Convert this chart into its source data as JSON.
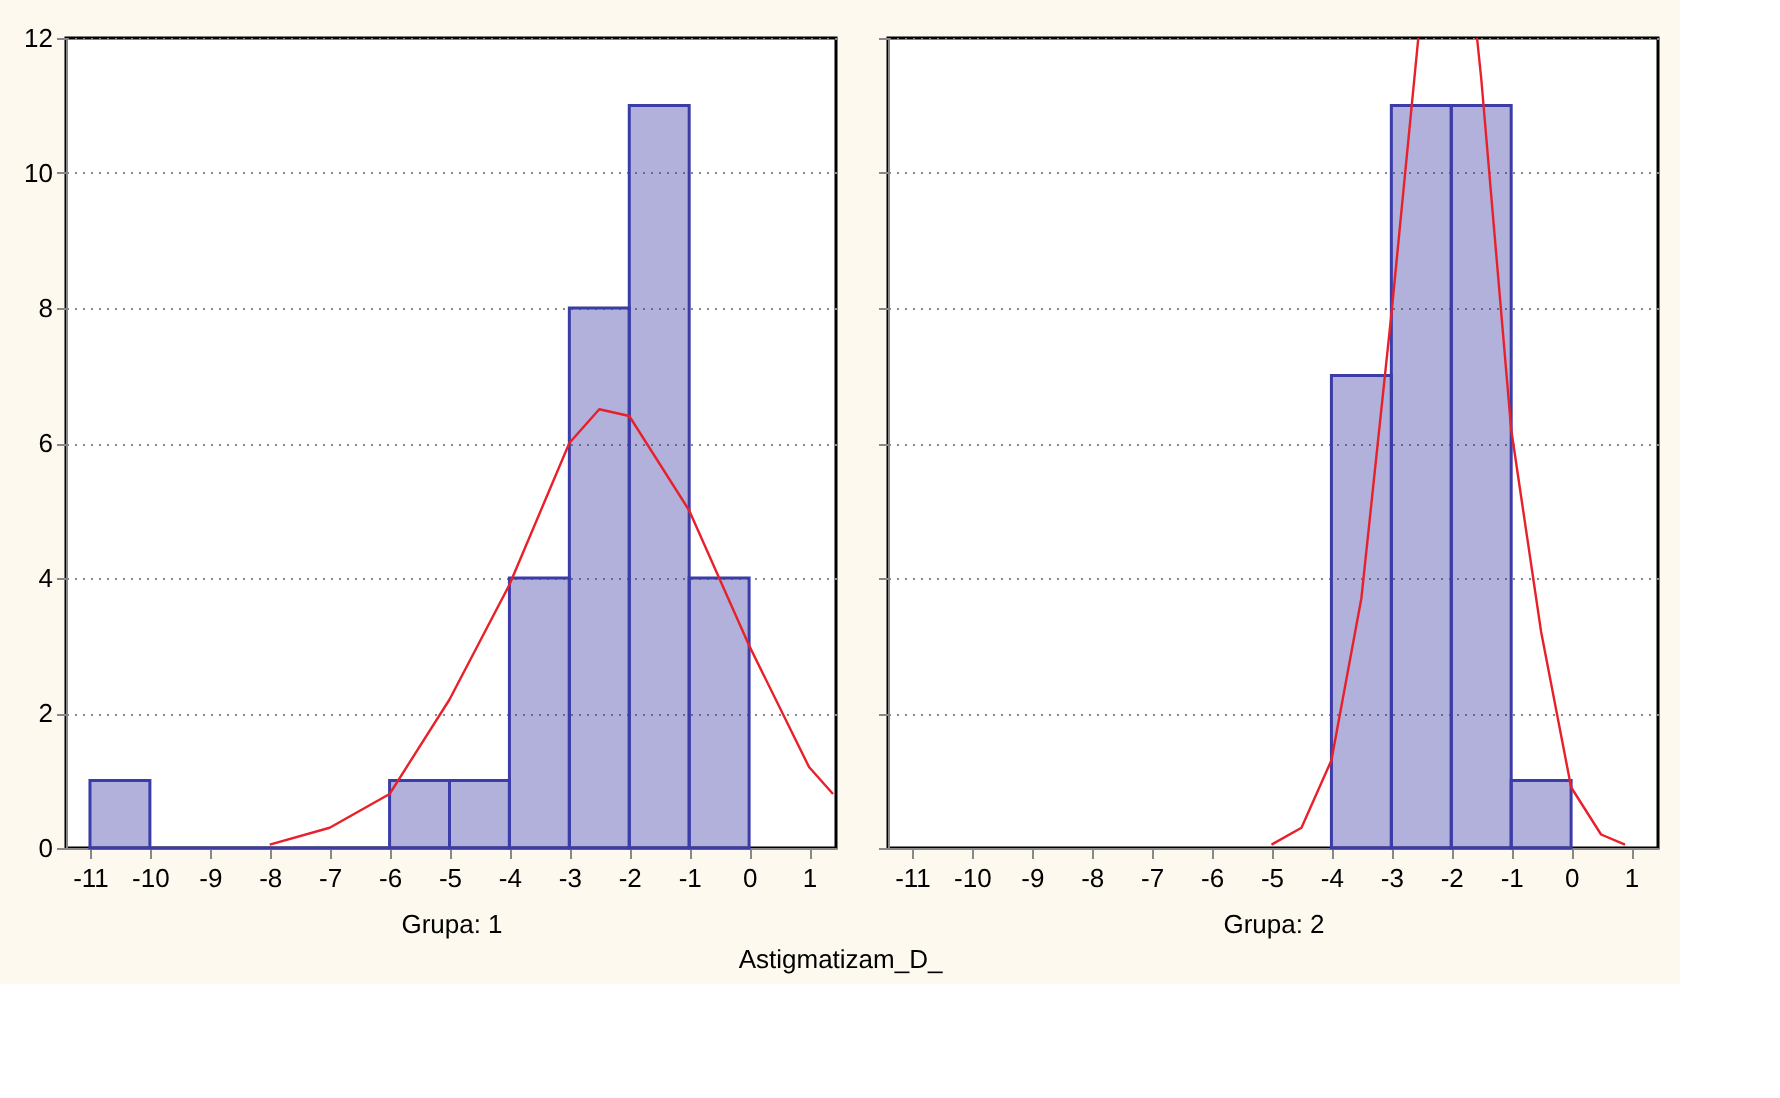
{
  "chart_data": [
    {
      "type": "histogram",
      "xlabel": "Grupa: 1",
      "annotations": [
        "Astigmatizam_D_"
      ],
      "xlim": [
        -11.4,
        1.45
      ],
      "ylim": [
        0,
        12
      ],
      "xticks": [
        -11,
        -10,
        -9,
        -8,
        -7,
        -6,
        -5,
        -4,
        -3,
        -2,
        -1,
        0,
        1
      ],
      "yticks": [
        0,
        2,
        4,
        6,
        8,
        10,
        12
      ],
      "grid": "y",
      "series": [
        {
          "type": "histogram",
          "color": "#3c3ca8",
          "bins": [
            -11,
            -10,
            -9,
            -8,
            -7,
            -6,
            -5,
            -4,
            -3,
            -2,
            -1,
            0
          ],
          "values": [
            1,
            0,
            0,
            0,
            0,
            1,
            1,
            4,
            8,
            11,
            4
          ]
        },
        {
          "type": "line",
          "color": "#e8202a",
          "x": [
            -8,
            -7,
            -6,
            -5,
            -4,
            -3,
            -2.5,
            -2,
            -1,
            0,
            1,
            1.4
          ],
          "values": [
            0.05,
            0.3,
            0.8,
            2.2,
            3.9,
            6.0,
            6.5,
            6.4,
            5.0,
            3.0,
            1.2,
            0.8
          ]
        }
      ]
    },
    {
      "type": "histogram",
      "xlabel": "Grupa: 2",
      "xlim": [
        -11.4,
        1.45
      ],
      "ylim": [
        0,
        12
      ],
      "xticks": [
        -11,
        -10,
        -9,
        -8,
        -7,
        -6,
        -5,
        -4,
        -3,
        -2,
        -1,
        0,
        1
      ],
      "yticks": [
        0,
        2,
        4,
        6,
        8,
        10,
        12
      ],
      "grid": "y",
      "tick_labels": "x",
      "series": [
        {
          "type": "histogram",
          "color": "#3c3ca8",
          "bins": [
            -4,
            -3,
            -2,
            -1,
            0
          ],
          "values": [
            7,
            11,
            11,
            1
          ]
        },
        {
          "type": "line",
          "color": "#e8202a",
          "x": [
            -5,
            -4.5,
            -4,
            -3.5,
            -3,
            -2.55,
            -2.06,
            -1.57,
            -1.5,
            -1,
            -0.5,
            0,
            0.5,
            0.9
          ],
          "values": [
            0.05,
            0.3,
            1.3,
            3.7,
            7.9,
            12,
            null,
            12,
            11.4,
            6.2,
            3.2,
            0.9,
            0.2,
            0.05
          ]
        }
      ]
    }
  ]
}
